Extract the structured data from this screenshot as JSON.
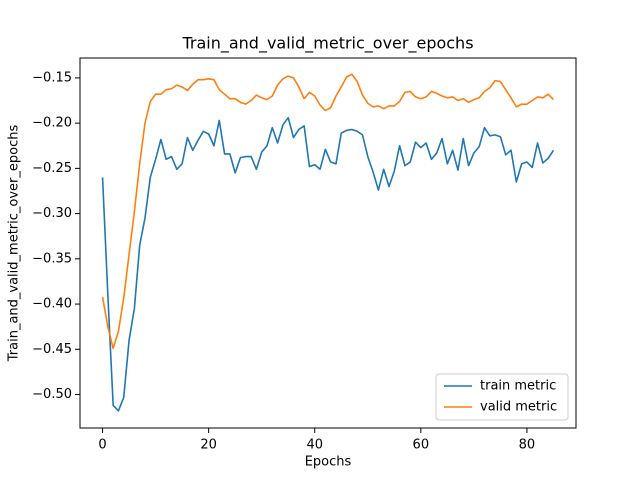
{
  "chart_data": {
    "type": "line",
    "title": "Train_and_valid_metric_over_epochs",
    "x_label": "Epochs",
    "y_label": "Train_and_valid_metric_over_epochs",
    "x": [
      0,
      1,
      2,
      3,
      4,
      5,
      6,
      7,
      8,
      9,
      10,
      11,
      12,
      13,
      14,
      15,
      16,
      17,
      18,
      19,
      20,
      21,
      22,
      23,
      24,
      25,
      26,
      27,
      28,
      29,
      30,
      31,
      32,
      33,
      34,
      35,
      36,
      37,
      38,
      39,
      40,
      41,
      42,
      43,
      44,
      45,
      46,
      47,
      48,
      49,
      50,
      51,
      52,
      53,
      54,
      55,
      56,
      57,
      58,
      59,
      60,
      61,
      62,
      63,
      64,
      65,
      66,
      67,
      68,
      69,
      70,
      71,
      72,
      73,
      74,
      75,
      76,
      77,
      78,
      79,
      80,
      81,
      82,
      83,
      84,
      85
    ],
    "series": [
      {
        "name": "train metric",
        "color": "#1f77b4",
        "values": [
          -0.26,
          -0.39,
          -0.512,
          -0.518,
          -0.503,
          -0.44,
          -0.405,
          -0.335,
          -0.305,
          -0.26,
          -0.24,
          -0.218,
          -0.24,
          -0.237,
          -0.251,
          -0.245,
          -0.216,
          -0.23,
          -0.219,
          -0.209,
          -0.212,
          -0.225,
          -0.197,
          -0.234,
          -0.234,
          -0.255,
          -0.238,
          -0.237,
          -0.237,
          -0.251,
          -0.232,
          -0.225,
          -0.205,
          -0.222,
          -0.202,
          -0.194,
          -0.216,
          -0.207,
          -0.203,
          -0.248,
          -0.246,
          -0.251,
          -0.229,
          -0.243,
          -0.245,
          -0.211,
          -0.208,
          -0.207,
          -0.209,
          -0.213,
          -0.237,
          -0.254,
          -0.274,
          -0.251,
          -0.27,
          -0.253,
          -0.225,
          -0.247,
          -0.243,
          -0.221,
          -0.227,
          -0.222,
          -0.24,
          -0.233,
          -0.217,
          -0.245,
          -0.23,
          -0.252,
          -0.217,
          -0.247,
          -0.233,
          -0.226,
          -0.205,
          -0.214,
          -0.213,
          -0.215,
          -0.235,
          -0.23,
          -0.265,
          -0.245,
          -0.243,
          -0.249,
          -0.222,
          -0.244,
          -0.239,
          -0.23
        ]
      },
      {
        "name": "valid metric",
        "color": "#ff7f0e",
        "values": [
          -0.392,
          -0.425,
          -0.449,
          -0.43,
          -0.393,
          -0.345,
          -0.298,
          -0.245,
          -0.2,
          -0.176,
          -0.168,
          -0.168,
          -0.163,
          -0.162,
          -0.158,
          -0.16,
          -0.164,
          -0.157,
          -0.152,
          -0.152,
          -0.151,
          -0.152,
          -0.163,
          -0.168,
          -0.173,
          -0.173,
          -0.177,
          -0.179,
          -0.175,
          -0.169,
          -0.172,
          -0.174,
          -0.17,
          -0.158,
          -0.151,
          -0.148,
          -0.15,
          -0.16,
          -0.173,
          -0.166,
          -0.17,
          -0.18,
          -0.186,
          -0.183,
          -0.17,
          -0.16,
          -0.149,
          -0.146,
          -0.154,
          -0.169,
          -0.178,
          -0.182,
          -0.181,
          -0.184,
          -0.181,
          -0.181,
          -0.176,
          -0.166,
          -0.165,
          -0.171,
          -0.173,
          -0.171,
          -0.165,
          -0.167,
          -0.17,
          -0.172,
          -0.171,
          -0.175,
          -0.173,
          -0.177,
          -0.174,
          -0.172,
          -0.165,
          -0.161,
          -0.153,
          -0.154,
          -0.163,
          -0.172,
          -0.182,
          -0.179,
          -0.179,
          -0.175,
          -0.171,
          -0.172,
          -0.168,
          -0.174
        ]
      }
    ],
    "xlim": [
      -4.25,
      89.25
    ],
    "ylim": [
      -0.537,
      -0.128
    ],
    "xticks": [
      0,
      20,
      40,
      60,
      80
    ],
    "yticks": [
      {
        "value": -0.5,
        "label": "−0.50"
      },
      {
        "value": -0.45,
        "label": "−0.45"
      },
      {
        "value": -0.4,
        "label": "−0.40"
      },
      {
        "value": -0.35,
        "label": "−0.35"
      },
      {
        "value": -0.3,
        "label": "−0.30"
      },
      {
        "value": -0.25,
        "label": "−0.25"
      },
      {
        "value": -0.2,
        "label": "−0.20"
      },
      {
        "value": -0.15,
        "label": "−0.15"
      }
    ],
    "grid": false,
    "legend": "lower right"
  }
}
